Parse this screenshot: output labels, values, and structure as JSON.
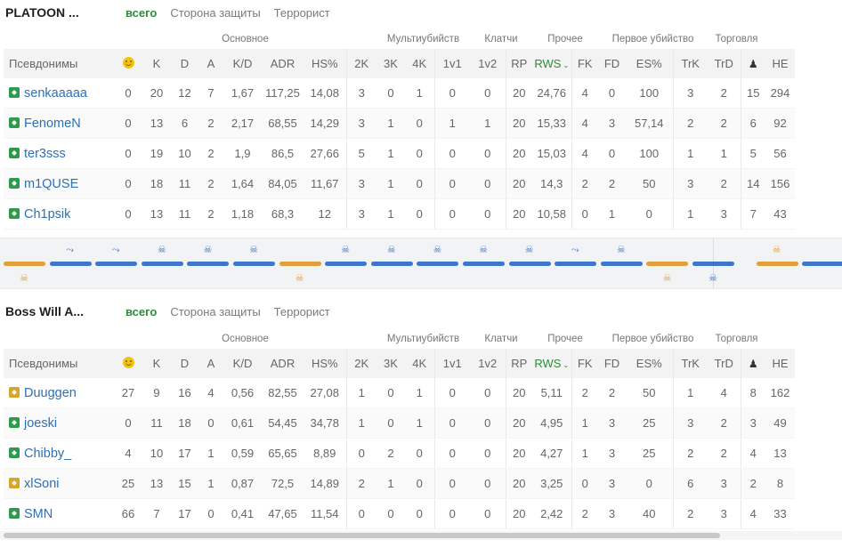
{
  "tabs": [
    "всего",
    "Сторона защиты",
    "Террорист"
  ],
  "group_labels": {
    "main": "Основное",
    "multikills": "Мультиубийств",
    "clutches": "Клатчи",
    "other": "Прочее",
    "first_kill": "Первое убийство",
    "trades": "Торговля"
  },
  "columns": {
    "nick": "Псевдонимы",
    "k": "K",
    "d": "D",
    "a": "A",
    "kd": "K/D",
    "adr": "ADR",
    "hs": "HS%",
    "k2": "2K",
    "k3": "3K",
    "k4": "4K",
    "c1": "1v1",
    "c2": "1v2",
    "rp": "RP",
    "rws": "RWS",
    "fk": "FK",
    "fd": "FD",
    "es": "ES%",
    "trk": "TrK",
    "trd": "TrD",
    "he": "HE"
  },
  "teams": [
    {
      "name": "PLATOON ...",
      "players": [
        {
          "nick": "senkaaaaa",
          "rank_color": "#2e9a4b",
          "v": [
            "0",
            "20",
            "12",
            "7",
            "1,67",
            "117,25",
            "14,08",
            "3",
            "0",
            "1",
            "0",
            "0",
            "20",
            "24,76",
            "4",
            "0",
            "100",
            "3",
            "2",
            "15",
            "294"
          ]
        },
        {
          "nick": "FenomeN",
          "rank_color": "#2e9a4b",
          "v": [
            "0",
            "13",
            "6",
            "2",
            "2,17",
            "68,55",
            "14,29",
            "3",
            "1",
            "0",
            "1",
            "1",
            "20",
            "15,33",
            "4",
            "3",
            "57,14",
            "2",
            "2",
            "6",
            "92"
          ]
        },
        {
          "nick": "ter3sss",
          "rank_color": "#2e9a4b",
          "v": [
            "0",
            "19",
            "10",
            "2",
            "1,9",
            "86,5",
            "27,66",
            "5",
            "1",
            "0",
            "0",
            "0",
            "20",
            "15,03",
            "4",
            "0",
            "100",
            "1",
            "1",
            "5",
            "56"
          ]
        },
        {
          "nick": "m1QUSE",
          "rank_color": "#2e9a4b",
          "v": [
            "0",
            "18",
            "11",
            "2",
            "1,64",
            "84,05",
            "11,67",
            "3",
            "1",
            "0",
            "0",
            "0",
            "20",
            "14,3",
            "2",
            "2",
            "50",
            "3",
            "2",
            "14",
            "156"
          ]
        },
        {
          "nick": "Ch1psik",
          "rank_color": "#2e9a4b",
          "v": [
            "0",
            "13",
            "11",
            "2",
            "1,18",
            "68,3",
            "12",
            "3",
            "1",
            "0",
            "0",
            "0",
            "20",
            "10,58",
            "0",
            "1",
            "0",
            "1",
            "3",
            "7",
            "43"
          ]
        }
      ]
    },
    {
      "name": "Boss Will A...",
      "players": [
        {
          "nick": "Duuggen",
          "rank_color": "#d9a529",
          "v": [
            "27",
            "9",
            "16",
            "4",
            "0,56",
            "82,55",
            "27,08",
            "1",
            "0",
            "1",
            "0",
            "0",
            "20",
            "5,11",
            "2",
            "2",
            "50",
            "1",
            "4",
            "8",
            "162"
          ]
        },
        {
          "nick": "joeski",
          "rank_color": "#2e9a4b",
          "v": [
            "0",
            "11",
            "18",
            "0",
            "0,61",
            "54,45",
            "34,78",
            "1",
            "0",
            "1",
            "0",
            "0",
            "20",
            "4,95",
            "1",
            "3",
            "25",
            "3",
            "2",
            "3",
            "49"
          ]
        },
        {
          "nick": "Chibby_",
          "rank_color": "#2e9a4b",
          "v": [
            "4",
            "10",
            "17",
            "1",
            "0,59",
            "65,65",
            "8,89",
            "0",
            "2",
            "0",
            "0",
            "0",
            "20",
            "4,27",
            "1",
            "3",
            "25",
            "2",
            "2",
            "4",
            "13"
          ]
        },
        {
          "nick": "xlSoni",
          "rank_color": "#d9a529",
          "v": [
            "25",
            "13",
            "15",
            "1",
            "0,87",
            "72,5",
            "14,89",
            "2",
            "1",
            "0",
            "0",
            "0",
            "20",
            "3,25",
            "0",
            "3",
            "0",
            "6",
            "3",
            "2",
            "8"
          ]
        },
        {
          "nick": "SMN",
          "rank_color": "#2e9a4b",
          "v": [
            "66",
            "7",
            "17",
            "0",
            "0,41",
            "47,65",
            "11,54",
            "0",
            "0",
            "0",
            "0",
            "0",
            "20",
            "2,42",
            "2",
            "3",
            "40",
            "2",
            "3",
            "4",
            "33"
          ]
        }
      ]
    }
  ],
  "rounds": [
    {
      "side": "t",
      "winner_icon": "skull",
      "icon_pos": "bottom"
    },
    {
      "side": "ct",
      "winner_icon": "defuse",
      "icon_pos": "top"
    },
    {
      "side": "ct",
      "winner_icon": "defuse",
      "icon_pos": "top"
    },
    {
      "side": "ct",
      "winner_icon": "skull",
      "icon_pos": "top"
    },
    {
      "side": "ct",
      "winner_icon": "skull",
      "icon_pos": "top"
    },
    {
      "side": "ct",
      "winner_icon": "skull",
      "icon_pos": "top"
    },
    {
      "side": "t",
      "winner_icon": "skull",
      "icon_pos": "bottom"
    },
    {
      "side": "ct",
      "winner_icon": "skull",
      "icon_pos": "top"
    },
    {
      "side": "ct",
      "winner_icon": "skull",
      "icon_pos": "top"
    },
    {
      "side": "ct",
      "winner_icon": "skull",
      "icon_pos": "top"
    },
    {
      "side": "ct",
      "winner_icon": "skull",
      "icon_pos": "top"
    },
    {
      "side": "ct",
      "winner_icon": "skull",
      "icon_pos": "top"
    },
    {
      "side": "ct",
      "winner_icon": "defuse",
      "icon_pos": "top"
    },
    {
      "side": "ct",
      "winner_icon": "skull",
      "icon_pos": "top"
    },
    {
      "side": "t",
      "winner_icon": "skull",
      "icon_pos": "bottom"
    },
    {
      "side": "ct",
      "winner_icon": "skull",
      "icon_pos": "bottom"
    },
    {
      "side": "t",
      "winner_icon": "skull",
      "icon_pos": "top"
    },
    {
      "side": "ct",
      "winner_icon": "none",
      "icon_pos": "none"
    }
  ],
  "colors": {
    "ct": "#3e77c8",
    "t": "#e0a03d",
    "accent": "#2e8b3c",
    "link": "#2f6fb3"
  }
}
